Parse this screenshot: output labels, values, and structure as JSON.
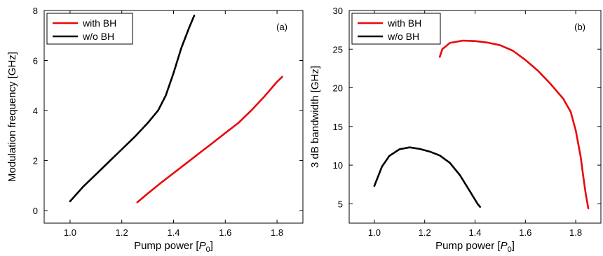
{
  "chart_data": [
    {
      "type": "line",
      "panel_label": "(a)",
      "xlabel_prefix": "Pump power [",
      "xlabel_symbol": "P",
      "xlabel_subscript": "0",
      "xlabel_suffix": "]",
      "ylabel": "Modulation frequency [GHz]",
      "xlim": [
        0.9,
        1.9
      ],
      "ylim": [
        -0.5,
        8
      ],
      "xticks": [
        1.0,
        1.2,
        1.4,
        1.6,
        1.8
      ],
      "xtick_labels": [
        "1.0",
        "1.2",
        "1.4",
        "1.6",
        "1.8"
      ],
      "yticks": [
        0,
        2,
        4,
        6,
        8
      ],
      "ytick_labels": [
        "0",
        "2",
        "4",
        "6",
        "8"
      ],
      "legend_position": "top-left",
      "series": [
        {
          "name": "with BH",
          "color": "#e8090b",
          "x": [
            1.26,
            1.3,
            1.35,
            1.4,
            1.45,
            1.5,
            1.55,
            1.6,
            1.65,
            1.7,
            1.75,
            1.8,
            1.82
          ],
          "y": [
            0.33,
            0.68,
            1.1,
            1.5,
            1.9,
            2.3,
            2.7,
            3.1,
            3.5,
            4.0,
            4.55,
            5.15,
            5.35
          ]
        },
        {
          "name": "w/o  BH",
          "color": "#000000",
          "x": [
            1.0,
            1.05,
            1.1,
            1.15,
            1.2,
            1.25,
            1.3,
            1.34,
            1.37,
            1.4,
            1.43,
            1.46,
            1.48
          ],
          "y": [
            0.37,
            0.95,
            1.45,
            1.95,
            2.45,
            2.95,
            3.5,
            4.0,
            4.6,
            5.5,
            6.5,
            7.3,
            7.8
          ]
        }
      ]
    },
    {
      "type": "line",
      "panel_label": "(b)",
      "xlabel_prefix": "Pump power [",
      "xlabel_symbol": "P",
      "xlabel_subscript": "0",
      "xlabel_suffix": "]",
      "ylabel": "3 dB bandwidth [GHz]",
      "xlim": [
        0.9,
        1.9
      ],
      "ylim": [
        2.5,
        30
      ],
      "xticks": [
        1.0,
        1.2,
        1.4,
        1.6,
        1.8
      ],
      "xtick_labels": [
        "1.0",
        "1.2",
        "1.4",
        "1.6",
        "1.8"
      ],
      "yticks": [
        5,
        10,
        15,
        20,
        25,
        30
      ],
      "ytick_labels": [
        "5",
        "10",
        "15",
        "20",
        "25",
        "30"
      ],
      "legend_position": "top-left",
      "series": [
        {
          "name": "with BH",
          "color": "#e8090b",
          "x": [
            1.26,
            1.27,
            1.3,
            1.35,
            1.4,
            1.45,
            1.5,
            1.55,
            1.6,
            1.65,
            1.7,
            1.75,
            1.78,
            1.8,
            1.82,
            1.83,
            1.84,
            1.85
          ],
          "y": [
            24.0,
            25.0,
            25.8,
            26.1,
            26.05,
            25.85,
            25.5,
            24.8,
            23.6,
            22.2,
            20.5,
            18.6,
            16.9,
            14.5,
            11.0,
            8.5,
            6.2,
            4.4
          ]
        },
        {
          "name": "w/o  BH",
          "color": "#000000",
          "x": [
            1.0,
            1.03,
            1.06,
            1.1,
            1.14,
            1.18,
            1.22,
            1.26,
            1.3,
            1.34,
            1.38,
            1.41,
            1.42
          ],
          "y": [
            7.3,
            9.8,
            11.2,
            12.05,
            12.3,
            12.1,
            11.75,
            11.25,
            10.3,
            8.7,
            6.6,
            5.0,
            4.6
          ]
        }
      ]
    }
  ]
}
